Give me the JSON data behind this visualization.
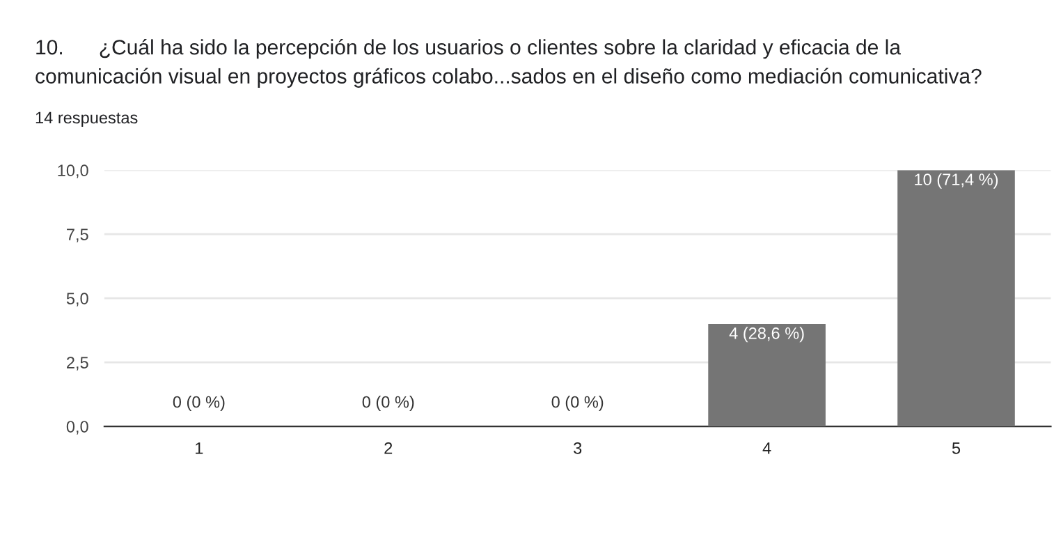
{
  "chart_data": {
    "type": "bar",
    "title": "10.      ¿Cuál ha sido la percepción de los usuarios o clientes sobre la claridad y eficacia de la\ncomunicación visual en proyectos gráficos colabo...sados en el diseño como mediación comunicativa?",
    "subtitle": "14 respuestas",
    "categories": [
      "1",
      "2",
      "3",
      "4",
      "5"
    ],
    "values": [
      0,
      0,
      0,
      4,
      10
    ],
    "value_labels": [
      "0 (0 %)",
      "0 (0 %)",
      "0 (0 %)",
      "4 (28,6 %)",
      "10 (71,4 %)"
    ],
    "color": "#757575",
    "ylim": [
      0,
      10
    ],
    "yticks": [
      {
        "value": 0,
        "label": "0,0"
      },
      {
        "value": 2.5,
        "label": "2,5"
      },
      {
        "value": 5,
        "label": "5,0"
      },
      {
        "value": 7.5,
        "label": "7,5"
      },
      {
        "value": 10,
        "label": "10,0"
      }
    ],
    "grid": "y"
  }
}
